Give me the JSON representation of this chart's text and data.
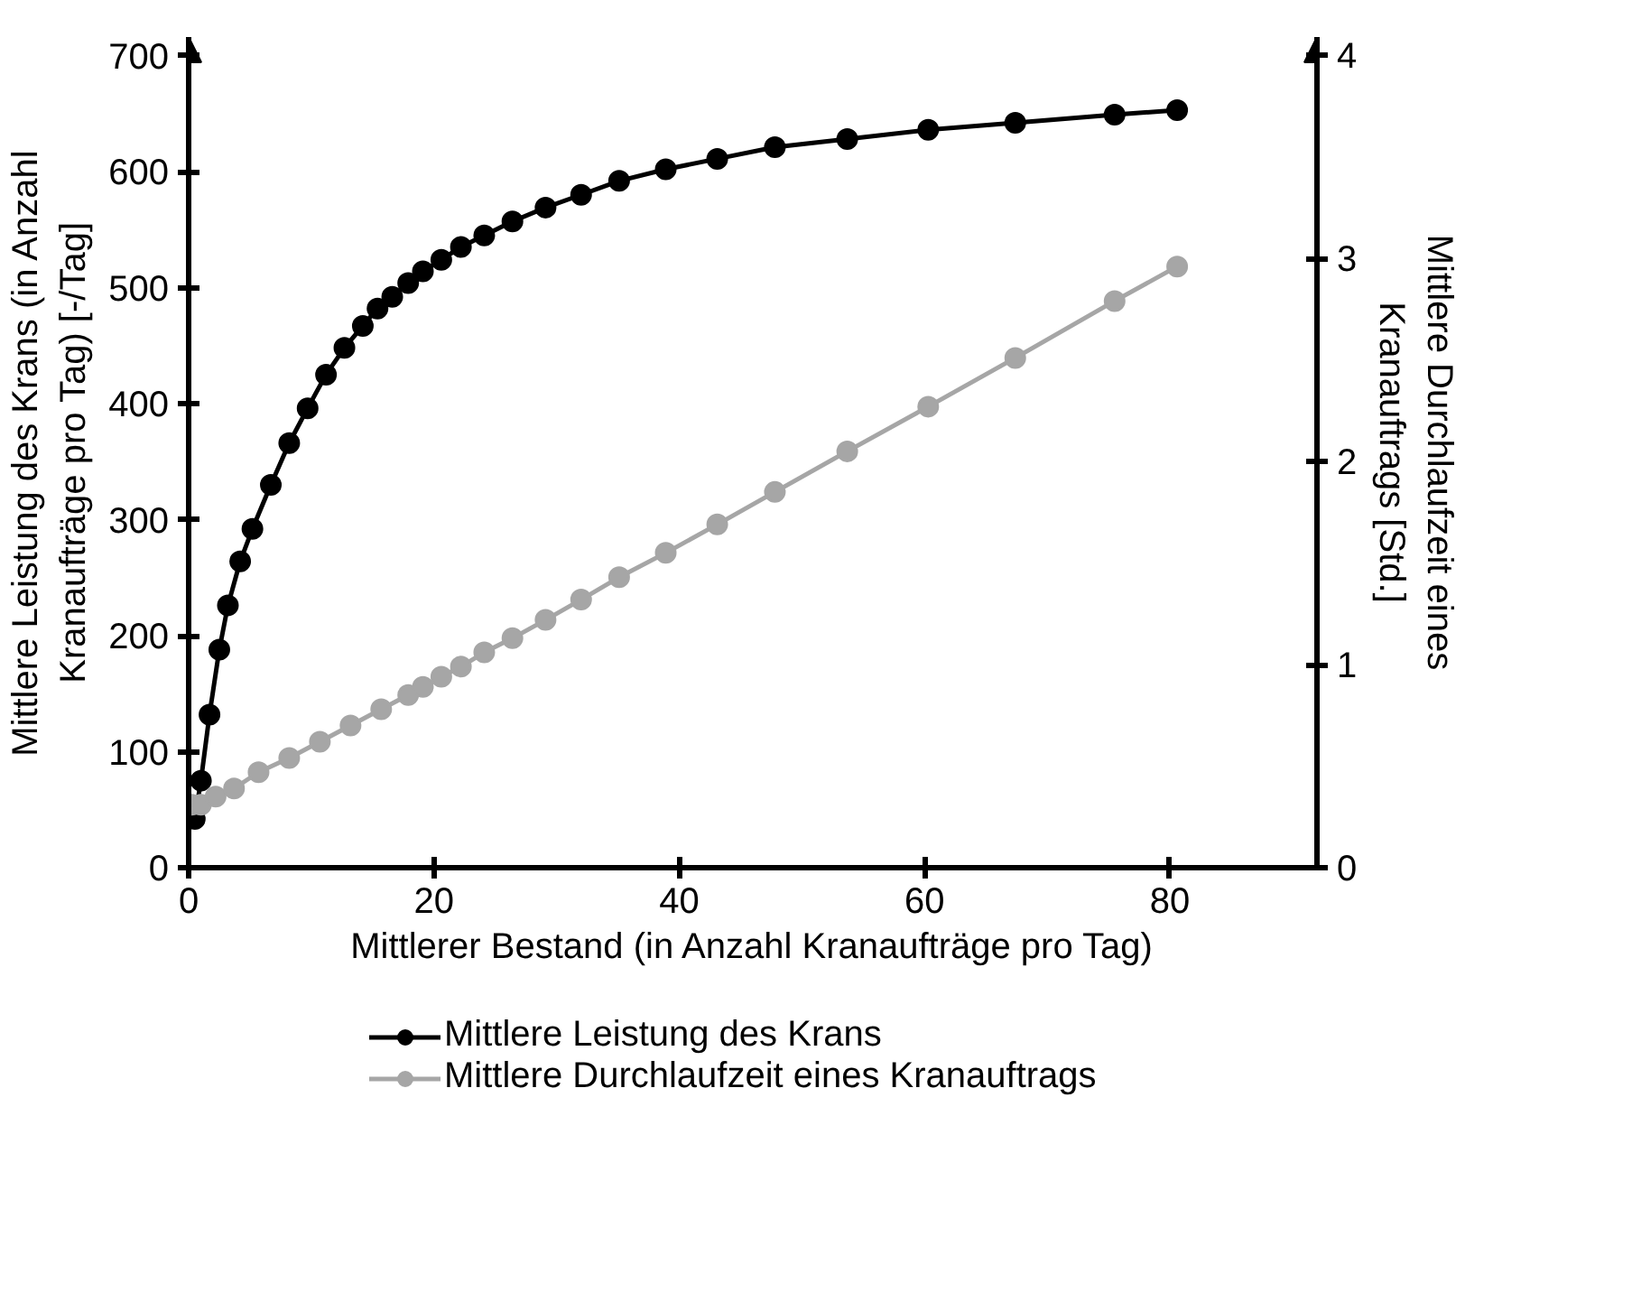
{
  "chart_data": {
    "type": "line",
    "xlabel": "Mittlerer Bestand (in Anzahl Kranaufträge pro Tag)",
    "ylabel": "Mittlere Leistung des Krans (in Anzahl Kranaufträge pro Tag) [-/Tag]",
    "y2label": "Mittlere Durchlaufzeit eines Kranauftrags [Std.]",
    "xlim": [
      0,
      92
    ],
    "xticks": [
      0,
      20,
      40,
      60,
      80
    ],
    "ylim": [
      0,
      716
    ],
    "yticks": [
      0,
      100,
      200,
      300,
      400,
      500,
      600,
      700
    ],
    "y2lim": [
      0,
      4.09
    ],
    "y2ticks": [
      0,
      1,
      2,
      3,
      4
    ],
    "grid": false,
    "legend": "bottom",
    "marker": "circle",
    "line_style": "solid",
    "series": [
      {
        "name": "Mittlere Leistung des Krans",
        "color": "#000000",
        "x": [
          0.5,
          1.0,
          1.7,
          2.5,
          3.2,
          4.2,
          5.2,
          6.7,
          8.2,
          9.7,
          11.2,
          12.7,
          14.2,
          15.4,
          16.6,
          17.9,
          19.1,
          20.6,
          22.2,
          24.1,
          26.4,
          29.1,
          32.0,
          35.1,
          38.9,
          43.1,
          47.8,
          53.7,
          60.3,
          67.4,
          75.5,
          80.6
        ],
        "values": [
          42,
          75,
          132,
          188,
          226,
          264,
          292,
          330,
          366,
          396,
          425,
          448,
          467,
          482,
          492,
          504,
          514,
          524,
          535,
          545,
          557,
          569,
          580,
          592,
          602,
          611,
          621,
          628,
          636,
          642,
          649,
          653
        ]
      },
      {
        "name": "Mittlere Durchlaufzeit eines Kranauftrags",
        "color": "#a6a6a6",
        "axis": "y2",
        "x": [
          0.25,
          1.0,
          2.2,
          3.7,
          5.7,
          8.2,
          10.7,
          13.2,
          15.7,
          17.9,
          19.1,
          20.6,
          22.2,
          24.1,
          26.4,
          29.1,
          32.0,
          35.1,
          38.9,
          43.1,
          47.8,
          53.7,
          60.3,
          67.4,
          75.5,
          80.6
        ],
        "values": [
          0.31,
          0.31,
          0.35,
          0.39,
          0.47,
          0.54,
          0.62,
          0.7,
          0.78,
          0.85,
          0.89,
          0.94,
          0.99,
          1.06,
          1.13,
          1.22,
          1.32,
          1.43,
          1.55,
          1.69,
          1.85,
          2.05,
          2.27,
          2.51,
          2.79,
          2.96
        ]
      }
    ]
  }
}
